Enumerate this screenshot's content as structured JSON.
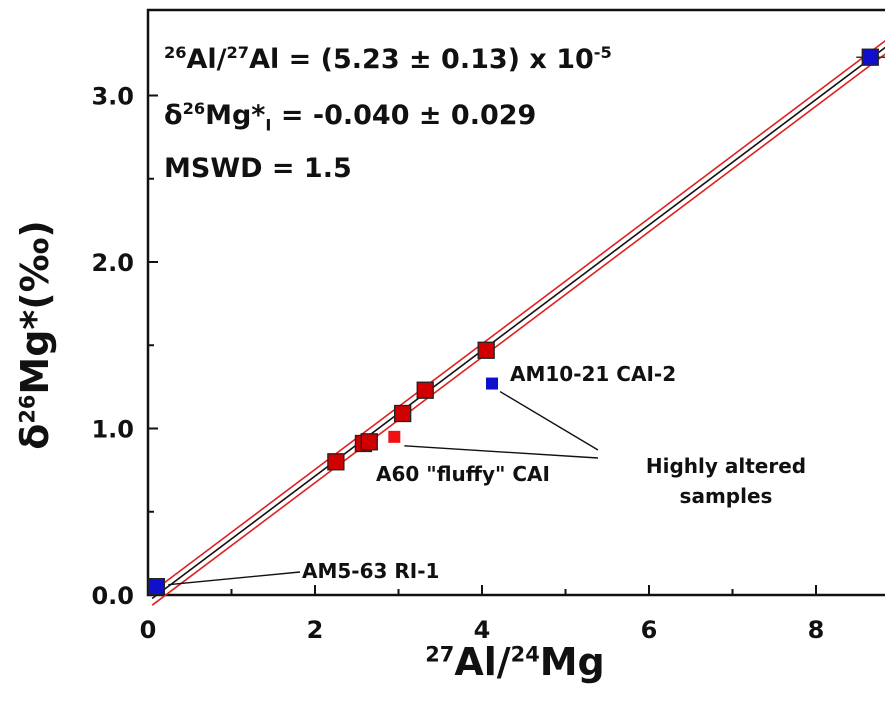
{
  "chart_data": {
    "type": "scatter",
    "xlabel": {
      "pre_sup": "27",
      "base": "Al/",
      "mid_sup": "24",
      "tail": "Mg"
    },
    "ylabel": {
      "delta": "δ",
      "sup": "26",
      "text": "Mg*(‰)"
    },
    "xlim": [
      0,
      9
    ],
    "ylim": [
      0,
      3.4
    ],
    "xticks": [
      "0",
      "2",
      "4",
      "6",
      "8"
    ],
    "yticks": [
      "0.0",
      "1.0",
      "2.0",
      "3.0"
    ],
    "fit": {
      "slope": 0.377,
      "intercept": -0.04,
      "envelope": 0.04
    },
    "series": [
      {
        "color": "#d00000",
        "points": [
          [
            2.25,
            0.8
          ],
          [
            2.58,
            0.91
          ],
          [
            2.65,
            0.92
          ],
          [
            3.05,
            1.09
          ],
          [
            3.32,
            1.23
          ],
          [
            4.05,
            1.47
          ]
        ]
      },
      {
        "color": "#1010cc",
        "points": [
          [
            0.1,
            0.05
          ],
          [
            8.65,
            3.23
          ]
        ]
      }
    ],
    "altered_points": [
      {
        "x": 4.12,
        "y": 1.27,
        "color": "#1010cc"
      },
      {
        "x": 2.95,
        "y": 0.95,
        "color": "#ee1111"
      }
    ],
    "annotations": {
      "eq1": {
        "sup1": "26",
        "a": "Al/",
        "sup2": "27",
        "b": "Al = (5.23 ± 0.13) x 10",
        "exp": "-5"
      },
      "eq2": {
        "delta": "δ",
        "sup": "26",
        "a": "Mg*",
        "sub": "I",
        "b": " = -0.040 ± 0.029"
      },
      "eq3": "MSWD = 1.5",
      "label_am10": "AM10-21 CAI-2",
      "label_a60": "A60 \"fluffy\" CAI",
      "label_altered_1": "Highly altered",
      "label_altered_2": "samples",
      "label_am5": "AM5-63 RI-1"
    }
  }
}
